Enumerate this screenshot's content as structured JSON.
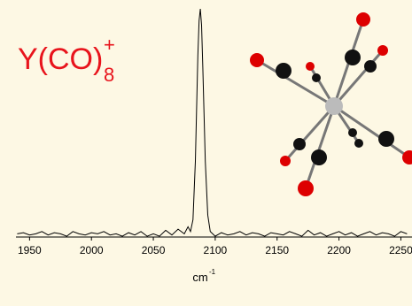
{
  "chart_data": {
    "type": "line",
    "title": "Y(CO)",
    "title_subscript": "8",
    "title_superscript": "+",
    "title_color": "#e8141c",
    "xlabel": "cm",
    "xlabel_superscript": "-1",
    "xlim": [
      1939,
      2259
    ],
    "ylim": [
      0,
      1
    ],
    "xticks": [
      1950,
      2000,
      2050,
      2100,
      2150,
      2200,
      2250
    ],
    "series": [
      {
        "color": "#000000",
        "x": [
          1940,
          1945,
          1950,
          1955,
          1960,
          1965,
          1970,
          1975,
          1980,
          1985,
          1990,
          1995,
          2000,
          2005,
          2010,
          2015,
          2020,
          2025,
          2030,
          2035,
          2040,
          2045,
          2050,
          2055,
          2060,
          2065,
          2070,
          2075,
          2078,
          2080,
          2082,
          2084,
          2086,
          2087,
          2088,
          2089,
          2090,
          2092,
          2094,
          2096,
          2100,
          2105,
          2110,
          2115,
          2120,
          2125,
          2130,
          2135,
          2140,
          2145,
          2150,
          2155,
          2160,
          2165,
          2170,
          2175,
          2180,
          2185,
          2190,
          2195,
          2200,
          2205,
          2210,
          2215,
          2220,
          2225,
          2230,
          2235,
          2240,
          2245,
          2250,
          2255
        ],
        "values": [
          0.04,
          0.045,
          0.035,
          0.04,
          0.05,
          0.035,
          0.045,
          0.04,
          0.03,
          0.05,
          0.04,
          0.035,
          0.045,
          0.04,
          0.05,
          0.035,
          0.04,
          0.03,
          0.045,
          0.035,
          0.05,
          0.03,
          0.04,
          0.03,
          0.055,
          0.035,
          0.06,
          0.04,
          0.07,
          0.05,
          0.1,
          0.35,
          0.8,
          0.95,
          1.0,
          0.93,
          0.75,
          0.35,
          0.12,
          0.05,
          0.03,
          0.045,
          0.035,
          0.04,
          0.05,
          0.035,
          0.045,
          0.04,
          0.03,
          0.045,
          0.04,
          0.035,
          0.05,
          0.04,
          0.03,
          0.055,
          0.035,
          0.045,
          0.03,
          0.04,
          0.05,
          0.035,
          0.045,
          0.03,
          0.04,
          0.05,
          0.035,
          0.045,
          0.04,
          0.03,
          0.05,
          0.04
        ]
      }
    ]
  }
}
